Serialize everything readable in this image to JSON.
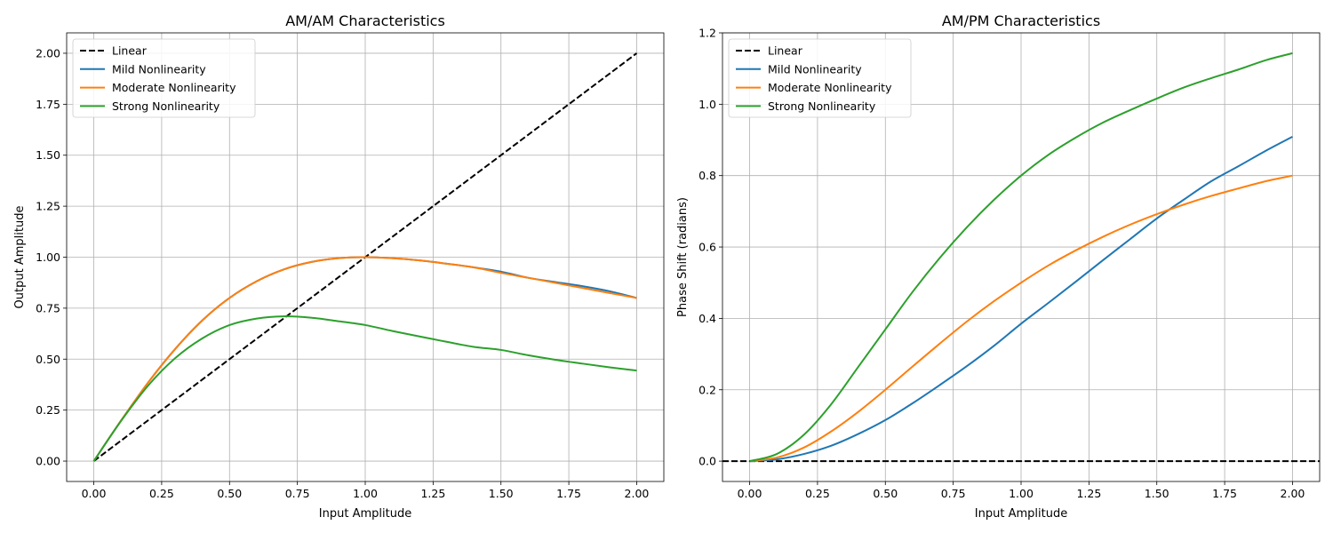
{
  "chart_data": [
    {
      "type": "line",
      "title": "AM/AM Characteristics",
      "xlabel": "Input Amplitude",
      "ylabel": "Output Amplitude",
      "xlim": [
        -0.1,
        2.1
      ],
      "ylim": [
        -0.1,
        2.1
      ],
      "xticks": [
        0,
        0.25,
        0.5,
        0.75,
        1.0,
        1.25,
        1.5,
        1.75,
        2.0
      ],
      "xtick_labels": [
        "0.00",
        "0.25",
        "0.50",
        "0.75",
        "1.00",
        "1.25",
        "1.50",
        "1.75",
        "2.00"
      ],
      "yticks": [
        0,
        0.25,
        0.5,
        0.75,
        1.0,
        1.25,
        1.5,
        1.75,
        2.0
      ],
      "ytick_labels": [
        "0.00",
        "0.25",
        "0.50",
        "0.75",
        "1.00",
        "1.25",
        "1.50",
        "1.75",
        "2.00"
      ],
      "grid": true,
      "legend_position": "top-left",
      "x": [
        0,
        0.1,
        0.2,
        0.3,
        0.4,
        0.5,
        0.6,
        0.7,
        0.8,
        0.9,
        1.0,
        1.1,
        1.2,
        1.3,
        1.4,
        1.5,
        1.6,
        1.7,
        1.8,
        1.9,
        2.0
      ],
      "series": [
        {
          "name": "Linear",
          "color": "#000000",
          "dashed": true,
          "values": [
            0,
            0.1,
            0.2,
            0.3,
            0.4,
            0.5,
            0.6,
            0.7,
            0.8,
            0.9,
            1.0,
            1.1,
            1.2,
            1.3,
            1.4,
            1.5,
            1.6,
            1.7,
            1.8,
            1.9,
            2.0
          ]
        },
        {
          "name": "Mild Nonlinearity",
          "color": "#1f77b4",
          "dashed": false,
          "values": [
            0,
            0.198,
            0.385,
            0.55,
            0.69,
            0.8,
            0.882,
            0.94,
            0.976,
            0.995,
            1.0,
            0.995,
            0.984,
            0.968,
            0.95,
            0.929,
            0.899,
            0.878,
            0.858,
            0.833,
            0.8
          ]
        },
        {
          "name": "Moderate Nonlinearity",
          "color": "#ff7f0e",
          "dashed": false,
          "values": [
            0,
            0.198,
            0.385,
            0.55,
            0.69,
            0.8,
            0.882,
            0.94,
            0.976,
            0.995,
            1.0,
            0.995,
            0.984,
            0.968,
            0.95,
            0.923,
            0.899,
            0.874,
            0.849,
            0.824,
            0.8
          ]
        },
        {
          "name": "Strong Nonlinearity",
          "color": "#2ca02c",
          "dashed": false,
          "values": [
            0,
            0.196,
            0.37,
            0.505,
            0.602,
            0.667,
            0.699,
            0.71,
            0.703,
            0.686,
            0.667,
            0.638,
            0.611,
            0.585,
            0.56,
            0.545,
            0.519,
            0.497,
            0.478,
            0.46,
            0.444
          ]
        }
      ]
    },
    {
      "type": "line",
      "title": "AM/PM Characteristics",
      "xlabel": "Input Amplitude",
      "ylabel": "Phase Shift (radians)",
      "xlim": [
        -0.1,
        2.1
      ],
      "ylim": [
        -0.057,
        1.2
      ],
      "xticks": [
        0,
        0.25,
        0.5,
        0.75,
        1.0,
        1.25,
        1.5,
        1.75,
        2.0
      ],
      "xtick_labels": [
        "0.00",
        "0.25",
        "0.50",
        "0.75",
        "1.00",
        "1.25",
        "1.50",
        "1.75",
        "2.00"
      ],
      "yticks": [
        0,
        0.2,
        0.4,
        0.6,
        0.8,
        1.0,
        1.2
      ],
      "ytick_labels": [
        "0.0",
        "0.2",
        "0.4",
        "0.6",
        "0.8",
        "1.0",
        "1.2"
      ],
      "grid": true,
      "legend_position": "top-left",
      "x": [
        0,
        0.1,
        0.2,
        0.3,
        0.4,
        0.5,
        0.6,
        0.7,
        0.8,
        0.9,
        1.0,
        1.1,
        1.2,
        1.3,
        1.4,
        1.5,
        1.6,
        1.7,
        1.8,
        1.9,
        2.0
      ],
      "series": [
        {
          "name": "Linear",
          "color": "#000000",
          "dashed": true,
          "full_width": true,
          "values": [
            0,
            0,
            0,
            0,
            0,
            0,
            0,
            0,
            0,
            0,
            0,
            0,
            0,
            0,
            0,
            0,
            0,
            0,
            0,
            0,
            0
          ]
        },
        {
          "name": "Mild Nonlinearity",
          "color": "#1f77b4",
          "dashed": false,
          "values": [
            0,
            0.005,
            0.02,
            0.043,
            0.076,
            0.115,
            0.162,
            0.213,
            0.266,
            0.323,
            0.385,
            0.443,
            0.502,
            0.562,
            0.621,
            0.68,
            0.733,
            0.784,
            0.826,
            0.869,
            0.909
          ]
        },
        {
          "name": "Moderate Nonlinearity",
          "color": "#ff7f0e",
          "dashed": false,
          "values": [
            0,
            0.01,
            0.038,
            0.083,
            0.138,
            0.2,
            0.265,
            0.329,
            0.391,
            0.448,
            0.5,
            0.548,
            0.59,
            0.628,
            0.662,
            0.692,
            0.719,
            0.743,
            0.764,
            0.784,
            0.8
          ]
        },
        {
          "name": "Strong Nonlinearity",
          "color": "#2ca02c",
          "dashed": false,
          "values": [
            0,
            0.02,
            0.074,
            0.159,
            0.264,
            0.369,
            0.474,
            0.569,
            0.655,
            0.732,
            0.8,
            0.858,
            0.906,
            0.948,
            0.983,
            1.016,
            1.047,
            1.073,
            1.097,
            1.123,
            1.143
          ]
        }
      ]
    }
  ]
}
